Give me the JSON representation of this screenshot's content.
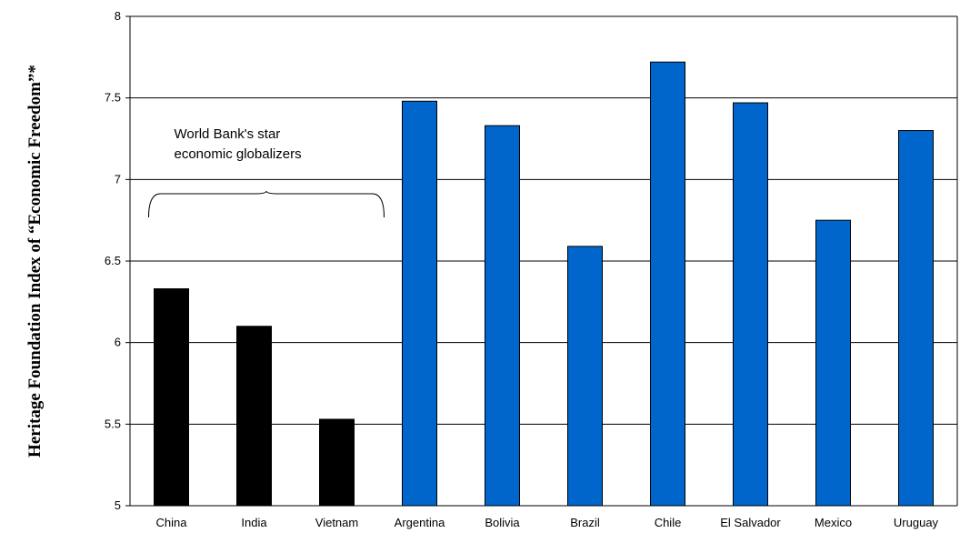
{
  "chart_data": {
    "type": "bar",
    "title": "",
    "xlabel": "",
    "ylabel": "Heritage Foundation Index of “Economic Freedom”*",
    "ylim": [
      5,
      8
    ],
    "yticks": [
      "5",
      "5.5",
      "6",
      "6.5",
      "7",
      "7.5",
      "8"
    ],
    "grid": true,
    "categories": [
      "China",
      "India",
      "Vietnam",
      "Argentina",
      "Bolivia",
      "Brazil",
      "Chile",
      "El Salvador",
      "Mexico",
      "Uruguay"
    ],
    "values": [
      6.33,
      6.1,
      5.53,
      7.48,
      7.33,
      6.59,
      7.72,
      7.47,
      6.75,
      7.3
    ],
    "colors": {
      "globalizers": "#000000",
      "latin_america": "#0066CC"
    },
    "bar_groups": [
      "globalizers",
      "globalizers",
      "globalizers",
      "latin_america",
      "latin_america",
      "latin_america",
      "latin_america",
      "latin_america",
      "latin_america",
      "latin_america"
    ],
    "annotation": {
      "lines": [
        "World Bank's star",
        "economic globalizers"
      ],
      "spans_categories": [
        "China",
        "India",
        "Vietnam"
      ]
    }
  }
}
